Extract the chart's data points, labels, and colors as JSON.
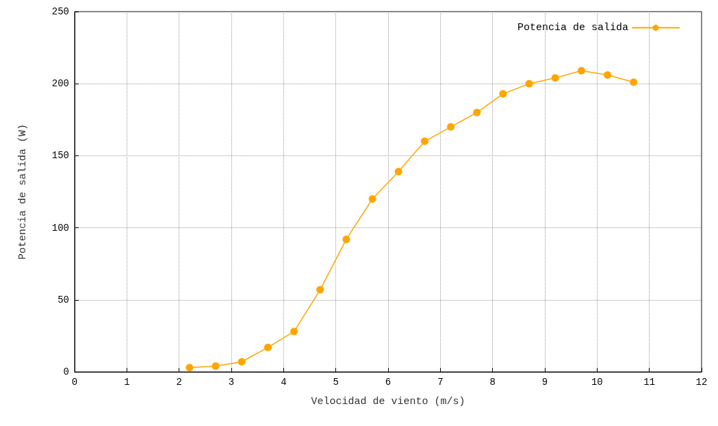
{
  "chart_data": {
    "type": "line",
    "xlabel": "Velocidad de viento (m/s)",
    "ylabel": "Potencia de salida (W)",
    "x": [
      2.2,
      2.7,
      3.2,
      3.7,
      4.2,
      4.7,
      5.2,
      5.7,
      6.2,
      6.7,
      7.2,
      7.7,
      8.2,
      8.7,
      9.2,
      9.7,
      10.2,
      10.7
    ],
    "series": [
      {
        "name": "Potencia de salida",
        "color": "#ffa500",
        "values": [
          3,
          4,
          7,
          17,
          28,
          57,
          92,
          120,
          139,
          160,
          170,
          180,
          193,
          200,
          204,
          209,
          206,
          201
        ]
      }
    ],
    "xlim": [
      0,
      12
    ],
    "xticks": [
      0,
      1,
      2,
      3,
      4,
      5,
      6,
      7,
      8,
      9,
      10,
      11,
      12
    ],
    "ylim": [
      0,
      250
    ],
    "yticks": [
      0,
      50,
      100,
      150,
      200,
      250
    ],
    "grid": true,
    "legend": "top right",
    "marker": "circle",
    "line_style": "solid"
  }
}
